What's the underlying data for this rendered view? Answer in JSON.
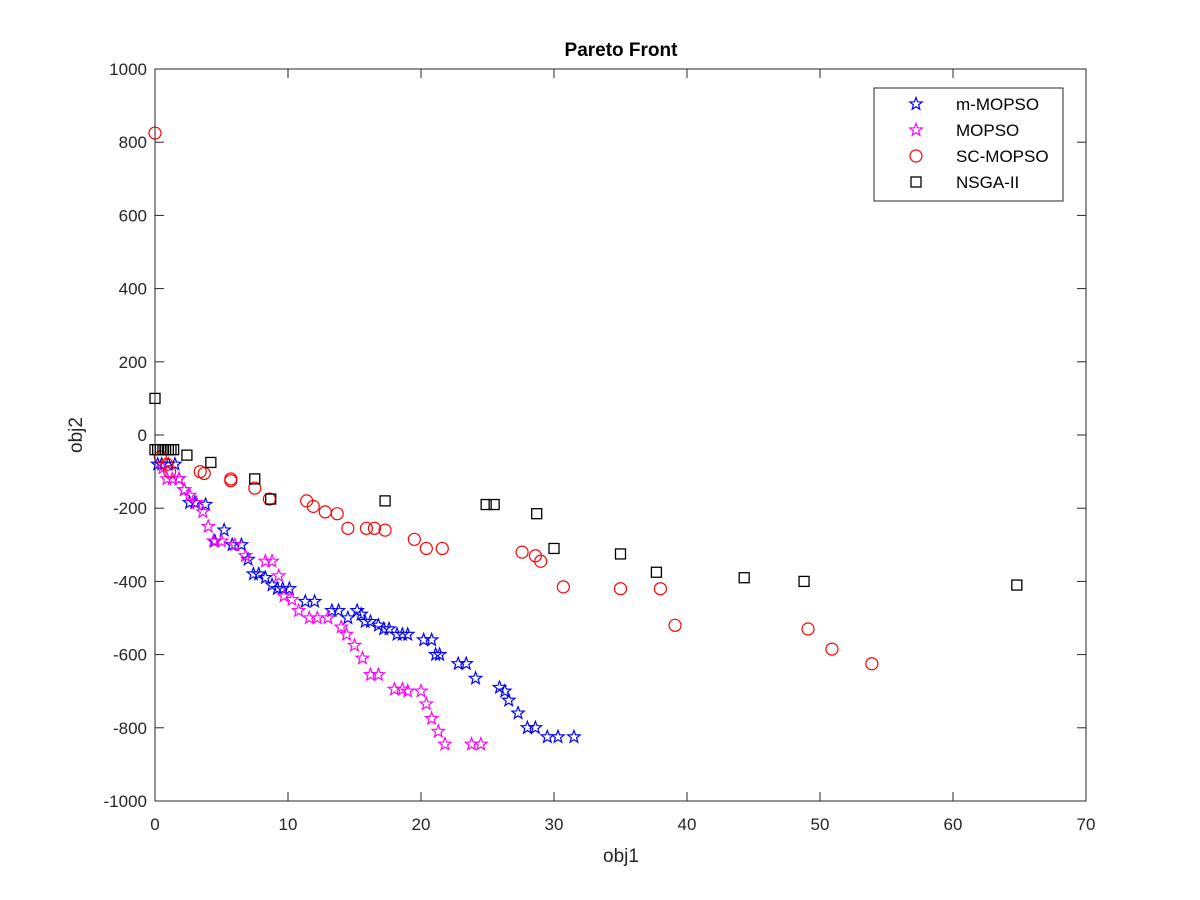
{
  "chart_data": {
    "type": "scatter",
    "title": "Pareto Front",
    "xlabel": "obj1",
    "ylabel": "obj2",
    "xlim": [
      0,
      70
    ],
    "ylim": [
      -1000,
      1000
    ],
    "xticks": [
      "0",
      "10",
      "20",
      "30",
      "40",
      "50",
      "60",
      "70"
    ],
    "yticks": [
      "-1000",
      "-800",
      "-600",
      "-400",
      "-200",
      "0",
      "200",
      "400",
      "600",
      "800",
      "1000"
    ],
    "grid": false,
    "legend_position": "top-right",
    "series": [
      {
        "name": "m-MOPSO",
        "marker": "star",
        "color": "#0000ff",
        "points": [
          [
            0.2,
            -80
          ],
          [
            0.5,
            -80
          ],
          [
            1.0,
            -80
          ],
          [
            1.5,
            -80
          ],
          [
            1.8,
            -120
          ],
          [
            2.2,
            -150
          ],
          [
            2.6,
            -185
          ],
          [
            3.0,
            -185
          ],
          [
            3.8,
            -190
          ],
          [
            4.5,
            -290
          ],
          [
            5.2,
            -260
          ],
          [
            5.8,
            -300
          ],
          [
            6.5,
            -300
          ],
          [
            7.0,
            -340
          ],
          [
            7.4,
            -380
          ],
          [
            7.8,
            -380
          ],
          [
            8.3,
            -390
          ],
          [
            8.8,
            -410
          ],
          [
            9.2,
            -420
          ],
          [
            9.6,
            -420
          ],
          [
            10.1,
            -420
          ],
          [
            11.3,
            -455
          ],
          [
            12.0,
            -455
          ],
          [
            13.3,
            -480
          ],
          [
            13.8,
            -480
          ],
          [
            14.5,
            -500
          ],
          [
            15.2,
            -480
          ],
          [
            15.5,
            -490
          ],
          [
            15.8,
            -510
          ],
          [
            16.2,
            -510
          ],
          [
            16.8,
            -520
          ],
          [
            17.2,
            -530
          ],
          [
            17.6,
            -530
          ],
          [
            18.2,
            -545
          ],
          [
            18.6,
            -545
          ],
          [
            19.0,
            -545
          ],
          [
            20.2,
            -560
          ],
          [
            20.8,
            -560
          ],
          [
            21.1,
            -600
          ],
          [
            21.4,
            -600
          ],
          [
            22.8,
            -625
          ],
          [
            23.4,
            -625
          ],
          [
            24.1,
            -665
          ],
          [
            25.9,
            -690
          ],
          [
            26.3,
            -700
          ],
          [
            26.6,
            -725
          ],
          [
            27.3,
            -760
          ],
          [
            28.0,
            -800
          ],
          [
            28.6,
            -800
          ],
          [
            29.5,
            -825
          ],
          [
            30.3,
            -825
          ],
          [
            31.5,
            -825
          ]
        ]
      },
      {
        "name": "MOPSO",
        "marker": "star",
        "color": "#ff00ff",
        "points": [
          [
            0.6,
            -90
          ],
          [
            0.9,
            -120
          ],
          [
            1.3,
            -120
          ],
          [
            1.8,
            -120
          ],
          [
            2.2,
            -150
          ],
          [
            2.6,
            -165
          ],
          [
            3.1,
            -185
          ],
          [
            3.6,
            -210
          ],
          [
            4.0,
            -250
          ],
          [
            4.4,
            -290
          ],
          [
            5.0,
            -290
          ],
          [
            6.0,
            -300
          ],
          [
            6.8,
            -330
          ],
          [
            8.3,
            -345
          ],
          [
            8.8,
            -345
          ],
          [
            9.3,
            -385
          ],
          [
            9.7,
            -440
          ],
          [
            10.3,
            -450
          ],
          [
            10.8,
            -480
          ],
          [
            11.6,
            -500
          ],
          [
            12.2,
            -500
          ],
          [
            13.0,
            -500
          ],
          [
            14.0,
            -525
          ],
          [
            14.4,
            -545
          ],
          [
            15.0,
            -575
          ],
          [
            15.6,
            -610
          ],
          [
            16.2,
            -655
          ],
          [
            16.8,
            -655
          ],
          [
            18.0,
            -695
          ],
          [
            18.6,
            -695
          ],
          [
            19.0,
            -700
          ],
          [
            20.0,
            -700
          ],
          [
            20.4,
            -735
          ],
          [
            20.8,
            -775
          ],
          [
            21.3,
            -810
          ],
          [
            21.8,
            -845
          ],
          [
            23.8,
            -845
          ],
          [
            24.5,
            -845
          ]
        ]
      },
      {
        "name": "SC-MOPSO",
        "marker": "circle",
        "color": "#ff0000",
        "points": [
          [
            0.0,
            825
          ],
          [
            0.4,
            -60
          ],
          [
            0.9,
            -80
          ],
          [
            1.1,
            -100
          ],
          [
            3.4,
            -100
          ],
          [
            3.7,
            -105
          ],
          [
            5.7,
            -120
          ],
          [
            5.7,
            -125
          ],
          [
            7.5,
            -145
          ],
          [
            8.6,
            -175
          ],
          [
            11.4,
            -180
          ],
          [
            11.9,
            -195
          ],
          [
            12.8,
            -210
          ],
          [
            13.7,
            -215
          ],
          [
            14.5,
            -255
          ],
          [
            15.9,
            -255
          ],
          [
            16.5,
            -255
          ],
          [
            17.3,
            -260
          ],
          [
            19.5,
            -285
          ],
          [
            20.4,
            -310
          ],
          [
            21.6,
            -310
          ],
          [
            27.6,
            -320
          ],
          [
            28.6,
            -330
          ],
          [
            29.0,
            -345
          ],
          [
            30.7,
            -415
          ],
          [
            35.0,
            -420
          ],
          [
            38.0,
            -420
          ],
          [
            39.1,
            -520
          ],
          [
            49.1,
            -530
          ],
          [
            50.9,
            -585
          ],
          [
            53.9,
            -625
          ]
        ]
      },
      {
        "name": "NSGA-II",
        "marker": "square",
        "color": "#000000",
        "points": [
          [
            0.0,
            100
          ],
          [
            0.0,
            -40
          ],
          [
            0.2,
            -40
          ],
          [
            0.4,
            -40
          ],
          [
            0.6,
            -40
          ],
          [
            0.8,
            -40
          ],
          [
            1.0,
            -40
          ],
          [
            1.2,
            -40
          ],
          [
            1.4,
            -40
          ],
          [
            2.4,
            -55
          ],
          [
            4.2,
            -75
          ],
          [
            7.5,
            -120
          ],
          [
            8.7,
            -175
          ],
          [
            17.3,
            -180
          ],
          [
            24.9,
            -190
          ],
          [
            25.5,
            -190
          ],
          [
            28.7,
            -215
          ],
          [
            30.0,
            -310
          ],
          [
            35.0,
            -325
          ],
          [
            37.7,
            -375
          ],
          [
            44.3,
            -390
          ],
          [
            48.8,
            -400
          ],
          [
            64.8,
            -410
          ]
        ]
      }
    ]
  }
}
